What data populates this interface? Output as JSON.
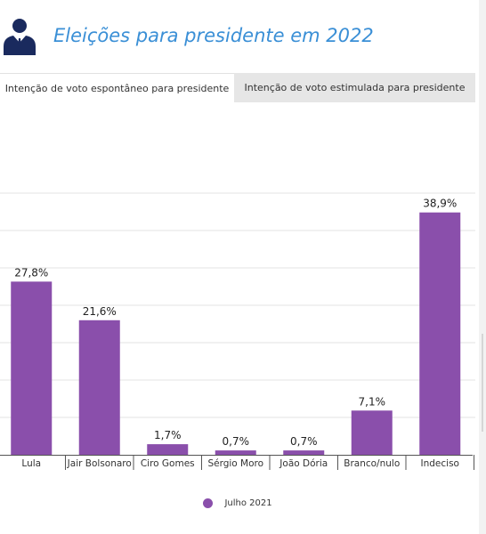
{
  "header": {
    "title": "Eleições para presidente em 2022",
    "icon": "businessman-icon",
    "title_color": "#3a8fd6"
  },
  "tabs": [
    {
      "label": "Intenção de voto espontâneo para presidente",
      "active": true
    },
    {
      "label": "Intenção de voto estimulada para presidente",
      "active": false
    }
  ],
  "chart_data": {
    "type": "bar",
    "categories": [
      "Lula",
      "Jair Bolsonaro",
      "Ciro Gomes",
      "Sérgio Moro",
      "João Dória",
      "Branco/nulo",
      "Indeciso"
    ],
    "series": [
      {
        "name": "Julho 2021",
        "values": [
          27.8,
          21.6,
          1.7,
          0.7,
          0.7,
          7.1,
          38.9
        ],
        "labels": [
          "27,8%",
          "21,6%",
          "1,7%",
          "0,7%",
          "0,7%",
          "7,1%",
          "38,9%"
        ],
        "color": "#8a4fab"
      }
    ],
    "ylim": [
      0,
      45
    ],
    "grid": true,
    "legend_position": "bottom"
  }
}
